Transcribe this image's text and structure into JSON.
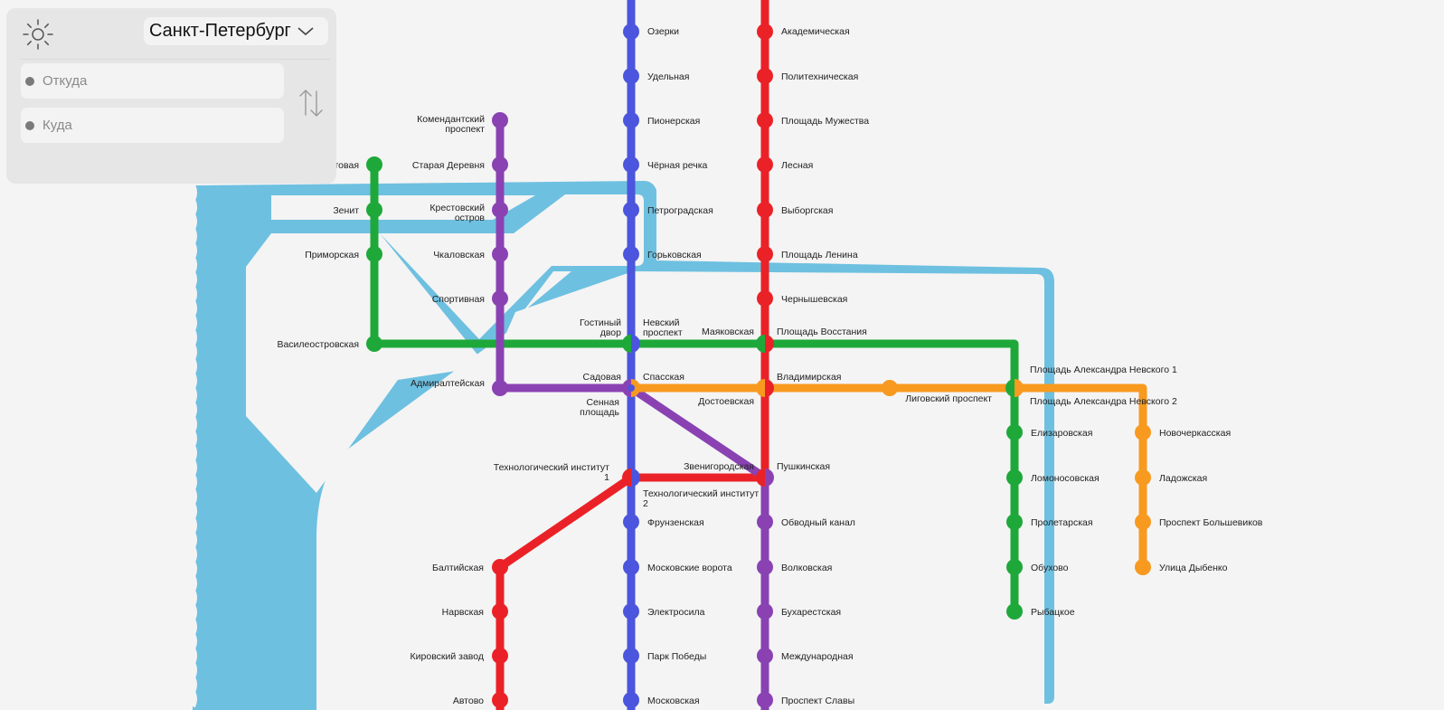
{
  "settings": {
    "theme_icon": "sun-icon"
  },
  "city_selector": {
    "selected": "Санкт-Петербург",
    "icon": "chevron-down-icon"
  },
  "route": {
    "from_placeholder": "Откуда",
    "to_placeholder": "Куда",
    "swap_icon": "swap-arrows-icon"
  },
  "colors": {
    "background": "#f4f4f4",
    "water": "#6ec0e0",
    "line_blue": "#4b55dd",
    "line_red": "#ea2227",
    "line_green": "#1fa83a",
    "line_purple": "#8a42b3",
    "line_orange": "#f79a1f"
  },
  "lines": [
    {
      "id": "red",
      "color": "#ea2227"
    },
    {
      "id": "blue",
      "color": "#4b55dd"
    },
    {
      "id": "green",
      "color": "#1fa83a"
    },
    {
      "id": "orange",
      "color": "#f79a1f"
    },
    {
      "id": "purple",
      "color": "#8a42b3"
    }
  ],
  "stations": {
    "blue": [
      "Озерки",
      "Удельная",
      "Пионерская",
      "Чёрная речка",
      "Петроградская",
      "Горьковская",
      "Невский проспект",
      "Сенная площадь",
      "Технологический институт 2",
      "Фрунзенская",
      "Московские ворота",
      "Электросила",
      "Парк Победы",
      "Московская"
    ],
    "red": [
      "Академическая",
      "Политехническая",
      "Площадь Мужества",
      "Лесная",
      "Выборгская",
      "Площадь Ленина",
      "Чернышевская",
      "Площадь Восстания",
      "Владимирская",
      "Пушкинская",
      "Технологический институт 1",
      "Балтийская",
      "Нарвская",
      "Кировский завод",
      "Автово"
    ],
    "green": [
      "Беговая",
      "Зенит",
      "Приморская",
      "Василеостровская",
      "Гостиный двор",
      "Маяковская",
      "Площадь Александра Невского 2",
      "Елизаровская",
      "Ломоносовская",
      "Пролетарская",
      "Обухово",
      "Рыбацкое"
    ],
    "purple": [
      "Комендантский проспект",
      "Старая Деревня",
      "Крестовский остров",
      "Чкаловская",
      "Спортивная",
      "Адмиралтейская",
      "Садовая",
      "Звенигородская",
      "Обводный канал",
      "Волковская",
      "Бухарестская",
      "Международная",
      "Проспект Славы"
    ],
    "orange": [
      "Спасская",
      "Достоевская",
      "Лиговский проспект",
      "Площадь Александра Невского 1",
      "Новочеркасская",
      "Ладожская",
      "Проспект Большевиков",
      "Улица Дыбенко"
    ]
  }
}
